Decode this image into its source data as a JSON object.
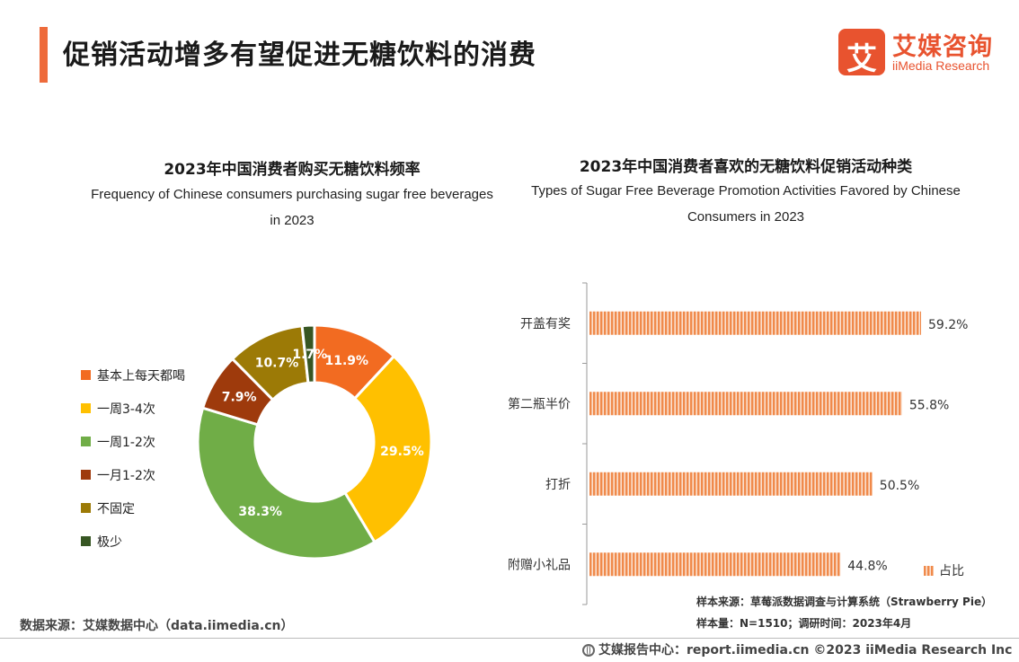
{
  "header": {
    "title": "促销活动增多有望促进无糖饮料的消费",
    "logo_mark": "艾",
    "logo_cn": "艾媒咨询",
    "logo_en": "iiMedia Research"
  },
  "chart_data": [
    {
      "type": "pie",
      "title": "2023年中国消费者购买无糖饮料频率",
      "subtitle": "Frequency of Chinese consumers purchasing sugar free beverages in 2023",
      "categories": [
        "基本上每天都喝",
        "一周3-4次",
        "一周1-2次",
        "一月1-2次",
        "不固定",
        "极少"
      ],
      "values": [
        11.9,
        29.5,
        38.3,
        7.9,
        10.7,
        1.7
      ],
      "data_labels": [
        "11.9%",
        "29.5%",
        "38.3%",
        "7.9%",
        "10.7%",
        "1.7%"
      ],
      "colors": [
        "#f26b21",
        "#ffc000",
        "#70ad47",
        "#9e3a0c",
        "#9c7a06",
        "#375623"
      ],
      "donut": true,
      "legend": "left"
    },
    {
      "type": "bar",
      "orientation": "horizontal",
      "title": "2023年中国消费者喜欢的无糖饮料促销活动种类",
      "subtitle": "Types of Sugar Free Beverage Promotion Activities Favored by Chinese Consumers in 2023",
      "categories": [
        "开盖有奖",
        "第二瓶半价",
        "打折",
        "附赠小礼品"
      ],
      "series": [
        {
          "name": "占比",
          "values": [
            59.2,
            55.8,
            50.5,
            44.8
          ]
        }
      ],
      "data_labels": [
        "59.2%",
        "55.8%",
        "50.5%",
        "44.8%"
      ],
      "xlim": [
        0,
        60
      ],
      "color": "#f08a4b",
      "legend": "bottom-right"
    }
  ],
  "notes": {
    "sample_source": "样本来源：草莓派数据调查与计算系统（Strawberry Pie）",
    "sample_size": "样本量：N=1510；调研时间：2023年4月"
  },
  "footer": {
    "data_source": "数据来源：艾媒数据中心（data.iimedia.cn）",
    "report_center": "艾媒报告中心：report.iimedia.cn  ©2023  iiMedia Research  Inc"
  }
}
